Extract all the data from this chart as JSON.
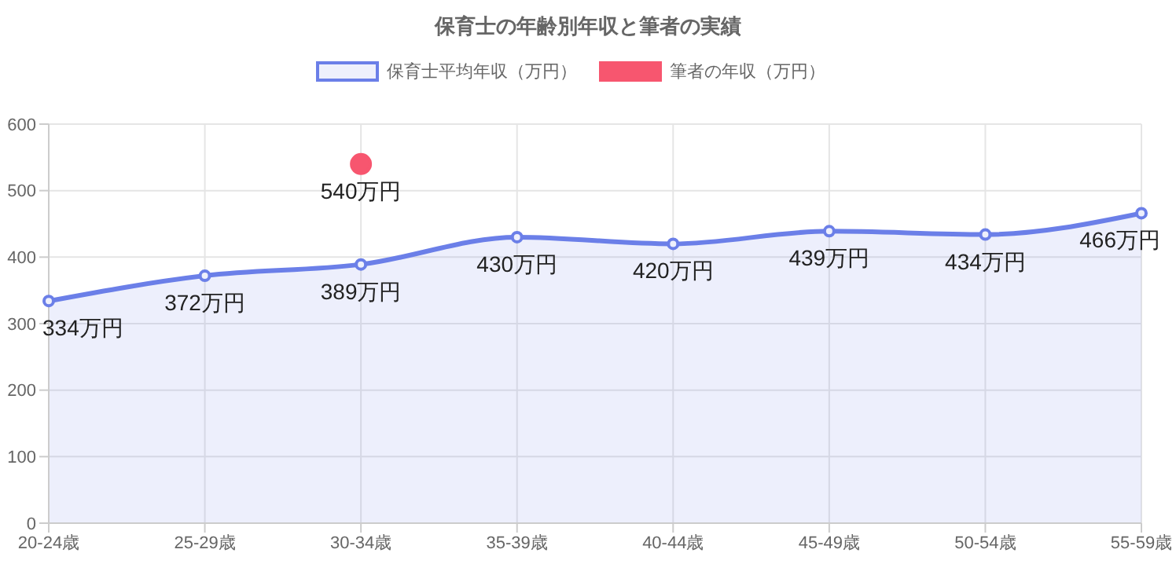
{
  "chart_data": {
    "type": "area",
    "title": "保育士の年齢別年収と筆者の実績",
    "categories": [
      "20-24歳",
      "25-29歳",
      "30-34歳",
      "35-39歳",
      "40-44歳",
      "45-49歳",
      "50-54歳",
      "55-59歳"
    ],
    "series": [
      {
        "name": "保育士平均年収（万円）",
        "color": "#6b7fe8",
        "values": [
          334,
          372,
          389,
          430,
          420,
          439,
          434,
          466
        ],
        "value_labels": [
          "334万円",
          "372万円",
          "389万円",
          "430万円",
          "420万円",
          "439万円",
          "434万円",
          "466万円"
        ]
      },
      {
        "name": "筆者の年収（万円）",
        "type": "scatter",
        "color": "#f7566f",
        "values": [
          null,
          null,
          540,
          null,
          null,
          null,
          null,
          null
        ],
        "value_labels": [
          null,
          null,
          "540万円",
          null,
          null,
          null,
          null,
          null
        ]
      }
    ],
    "ylim": [
      0,
      600
    ],
    "yticks": [
      0,
      100,
      200,
      300,
      400,
      500,
      600
    ],
    "grid": true,
    "legend": "top",
    "marker": "circle"
  }
}
